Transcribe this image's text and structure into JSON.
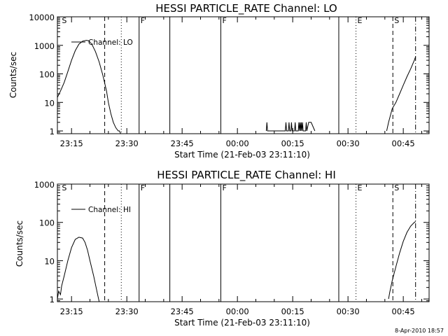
{
  "date_stamp": "8-Apr-2010 18:57",
  "chart_data": [
    {
      "type": "line",
      "title": "HESSI PARTICLE_RATE Channel: LO",
      "xlabel": "Start Time (21-Feb-03 23:11:10)",
      "ylabel": "Counts/sec",
      "y_scale": "log",
      "ylim": [
        0.8,
        10000
      ],
      "xlim": [
        "23:11:10",
        "00:52:00"
      ],
      "y_ticks": [
        "1",
        "10",
        "100",
        "1000",
        "10000"
      ],
      "x_ticks": [
        "23:15",
        "23:30",
        "23:45",
        "00:00",
        "00:15",
        "00:30",
        "00:45"
      ],
      "legend": "Channel: LO",
      "event_markers": [
        {
          "time": "23:12",
          "label": "S",
          "style": "none"
        },
        {
          "time": "23:24",
          "label": "",
          "style": "dashed"
        },
        {
          "time": "23:28:30",
          "label": "",
          "style": "dotted"
        },
        {
          "time": "23:33:20",
          "label": "F",
          "style": "solid"
        },
        {
          "time": "23:41:40",
          "label": "",
          "style": "solid"
        },
        {
          "time": "23:55:30",
          "label": "F",
          "style": "solid"
        },
        {
          "time": "00:27:30",
          "label": "",
          "style": "solid"
        },
        {
          "time": "00:32:10",
          "label": "E",
          "style": "dotted"
        },
        {
          "time": "00:42:10",
          "label": "S",
          "style": "dashed"
        },
        {
          "time": "00:48:20",
          "label": "",
          "style": "dashdot"
        }
      ],
      "series": [
        {
          "x": [
            "23:11:10",
            "23:12:00",
            "23:13:00",
            "23:14:00",
            "23:15:00",
            "23:16:00",
            "23:17:00",
            "23:18:00",
            "23:19:00",
            "23:19:40",
            "23:20:30",
            "23:21:30",
            "23:22:30",
            "23:23:30",
            "23:24:30",
            "23:25:00",
            "23:25:40",
            "23:26:20",
            "23:27:00",
            "23:27:40",
            "23:28:00",
            "23:28:20"
          ],
          "y": [
            15,
            25,
            50,
            120,
            300,
            650,
            1100,
            1400,
            1500,
            1450,
            1100,
            600,
            260,
            90,
            25,
            10,
            4,
            2,
            1.3,
            1,
            1,
            0.8
          ]
        },
        {
          "x": [
            "00:07:50",
            "00:08:00",
            "00:08:10",
            "00:13:00",
            "00:13:10",
            "00:13:20",
            "00:13:50",
            "00:14:00",
            "00:14:10",
            "00:14:30",
            "00:14:40",
            "00:14:50",
            "00:15:30",
            "00:15:40",
            "00:15:50",
            "00:16:30",
            "00:16:40",
            "00:16:50",
            "00:17:00",
            "00:17:10",
            "00:17:20",
            "00:17:30",
            "00:17:40",
            "00:17:50",
            "00:18:30",
            "00:18:40",
            "00:18:50",
            "00:19:20",
            "00:19:40",
            "00:20:00",
            "00:21:00"
          ],
          "y": [
            1,
            2,
            1,
            1,
            2,
            1,
            1,
            2,
            1,
            1,
            2,
            1,
            1,
            2,
            1,
            1,
            2,
            1,
            2,
            1,
            2,
            1,
            2,
            1,
            1,
            2,
            1,
            2,
            2,
            2,
            1
          ]
        },
        {
          "x": [
            "00:40:30",
            "00:41:00",
            "00:42:00",
            "00:43:00",
            "00:44:00",
            "00:45:00",
            "00:46:00",
            "00:47:00",
            "00:48:00",
            "00:48:20"
          ],
          "y": [
            1,
            2,
            6,
            10,
            20,
            40,
            80,
            150,
            300,
            400
          ]
        }
      ]
    },
    {
      "type": "line",
      "title": "HESSI PARTICLE_RATE Channel: HI",
      "xlabel": "Start Time (21-Feb-03 23:11:10)",
      "ylabel": "Counts/sec",
      "y_scale": "log",
      "ylim": [
        0.85,
        1000
      ],
      "xlim": [
        "23:11:10",
        "00:52:00"
      ],
      "y_ticks": [
        "1",
        "10",
        "100",
        "1000"
      ],
      "x_ticks": [
        "23:15",
        "23:30",
        "23:45",
        "00:00",
        "00:15",
        "00:30",
        "00:45"
      ],
      "legend": "Channel: HI",
      "event_markers": [
        {
          "time": "23:12",
          "label": "S",
          "style": "none"
        },
        {
          "time": "23:24",
          "label": "",
          "style": "dashed"
        },
        {
          "time": "23:28:30",
          "label": "",
          "style": "dotted"
        },
        {
          "time": "23:33:20",
          "label": "F",
          "style": "solid"
        },
        {
          "time": "23:41:40",
          "label": "",
          "style": "solid"
        },
        {
          "time": "23:55:30",
          "label": "F",
          "style": "solid"
        },
        {
          "time": "00:27:30",
          "label": "",
          "style": "solid"
        },
        {
          "time": "00:32:10",
          "label": "E",
          "style": "dotted"
        },
        {
          "time": "00:42:10",
          "label": "S",
          "style": "dashed"
        },
        {
          "time": "00:48:20",
          "label": "",
          "style": "dashdot"
        }
      ],
      "series": [
        {
          "x": [
            "23:11:10",
            "23:11:30",
            "23:12:00",
            "23:12:20",
            "23:13:00",
            "23:14:00",
            "23:15:00",
            "23:16:00",
            "23:17:00",
            "23:18:00",
            "23:18:40",
            "23:19:20",
            "23:20:00",
            "23:21:00",
            "23:21:40",
            "23:22:10",
            "23:22:30"
          ],
          "y": [
            1,
            1.6,
            1.3,
            2.2,
            4,
            10,
            22,
            36,
            41,
            39,
            30,
            19,
            10,
            4,
            2,
            1.2,
            0.85
          ]
        },
        {
          "x": [
            "00:41:00",
            "00:41:20",
            "00:42:00",
            "00:43:00",
            "00:44:00",
            "00:45:00",
            "00:46:00",
            "00:47:00",
            "00:48:00",
            "00:48:20"
          ],
          "y": [
            1,
            1.5,
            3,
            7,
            16,
            32,
            55,
            80,
            100,
            105
          ]
        }
      ]
    }
  ]
}
